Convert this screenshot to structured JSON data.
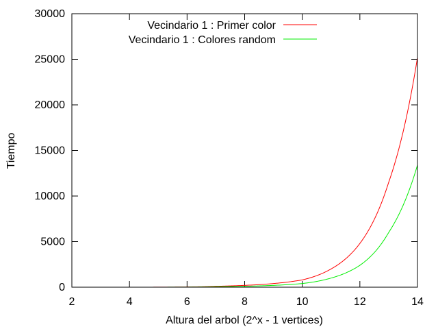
{
  "chart_data": {
    "type": "line",
    "title": "",
    "xlabel": "Altura del arbol (2^x - 1 vertices)",
    "ylabel": "Tiempo",
    "xlim": [
      2,
      14
    ],
    "ylim": [
      0,
      30000
    ],
    "xticks": [
      2,
      4,
      6,
      8,
      10,
      12,
      14
    ],
    "yticks": [
      0,
      5000,
      10000,
      15000,
      20000,
      25000,
      30000
    ],
    "grid": false,
    "legend_position": "top",
    "x": [
      2,
      3,
      4,
      5,
      6,
      7,
      8,
      9,
      10,
      11,
      12,
      13,
      14
    ],
    "series": [
      {
        "name": "Vecindario 1 : Primer color",
        "color": "#ff0000",
        "values": [
          0.1,
          0.4,
          1.6,
          6.4,
          25,
          100,
          200,
          400,
          800,
          2000,
          4800,
          11500,
          25200
        ]
      },
      {
        "name": "Vecindario 1 : Colores random",
        "color": "#00ee00",
        "values": [
          0.05,
          0.2,
          0.8,
          3.2,
          13,
          50,
          100,
          200,
          400,
          1000,
          2400,
          6000,
          13400
        ]
      }
    ]
  }
}
